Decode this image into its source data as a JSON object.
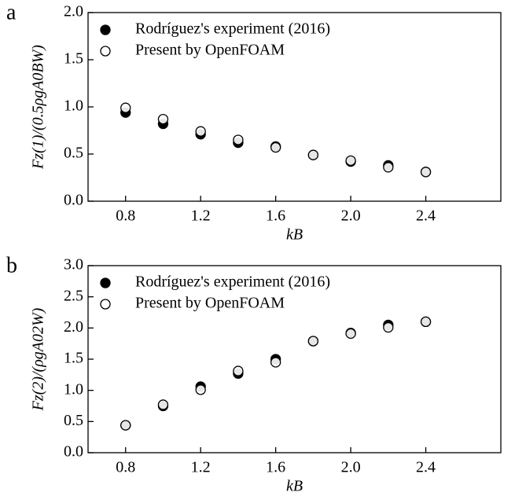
{
  "chart_data": [
    {
      "type": "scatter",
      "panel": "a",
      "xlabel": "kB",
      "ylabel": "Fz(1)/(0.5ρgA0BW)",
      "xlim": [
        0.6,
        2.8
      ],
      "ylim": [
        0,
        2
      ],
      "xticks": [
        0.8,
        1.2,
        1.6,
        {
          "value": 2,
          "label": "2.0"
        },
        2.4
      ],
      "yticks": [
        {
          "value": 0,
          "label": "0.0"
        },
        0.5,
        {
          "value": 1,
          "label": "1.0"
        },
        1.5,
        {
          "value": 2,
          "label": "2.0"
        }
      ],
      "legend": "upper left",
      "series": [
        {
          "name": "Rodríguez's experiment (2016)",
          "color": "#000000",
          "filled": true,
          "x": [
            0.8,
            1.0,
            1.2,
            1.4,
            1.6,
            1.8,
            2.0,
            2.2,
            2.4
          ],
          "values": [
            0.94,
            0.82,
            0.71,
            0.62,
            0.58,
            0.49,
            0.42,
            0.38,
            0.31
          ]
        },
        {
          "name": "Present by OpenFOAM",
          "color": "#000000",
          "filled": false,
          "x": [
            0.8,
            1.0,
            1.2,
            1.4,
            1.6,
            1.8,
            2.0,
            2.2,
            2.4
          ],
          "values": [
            0.99,
            0.87,
            0.74,
            0.65,
            0.57,
            0.49,
            0.43,
            0.36,
            0.31
          ]
        }
      ]
    },
    {
      "type": "scatter",
      "panel": "b",
      "xlabel": "kB",
      "ylabel": "Fz(2)/(ρgA02W)",
      "xlim": [
        0.6,
        2.8
      ],
      "ylim": [
        0,
        3
      ],
      "xticks": [
        0.8,
        1.2,
        1.6,
        {
          "value": 2,
          "label": "2.0"
        },
        2.4
      ],
      "yticks": [
        {
          "value": 0,
          "label": "0.0"
        },
        0.5,
        {
          "value": 1,
          "label": "1.0"
        },
        1.5,
        {
          "value": 2,
          "label": "2.0"
        },
        2.5,
        {
          "value": 3,
          "label": "3.0"
        }
      ],
      "legend": "upper left",
      "series": [
        {
          "name": "Rodríguez's experiment (2016)",
          "color": "#000000",
          "filled": true,
          "x": [
            0.8,
            1.0,
            1.2,
            1.4,
            1.6,
            1.8,
            2.0,
            2.2,
            2.4
          ],
          "values": [
            0.44,
            0.75,
            1.06,
            1.27,
            1.5,
            1.79,
            1.92,
            2.05,
            2.1
          ]
        },
        {
          "name": "Present by OpenFOAM",
          "color": "#000000",
          "filled": false,
          "x": [
            0.8,
            1.0,
            1.2,
            1.4,
            1.6,
            1.8,
            2.0,
            2.2,
            2.4
          ],
          "values": [
            0.44,
            0.77,
            1.01,
            1.31,
            1.45,
            1.79,
            1.91,
            2.01,
            2.1
          ]
        }
      ]
    }
  ]
}
